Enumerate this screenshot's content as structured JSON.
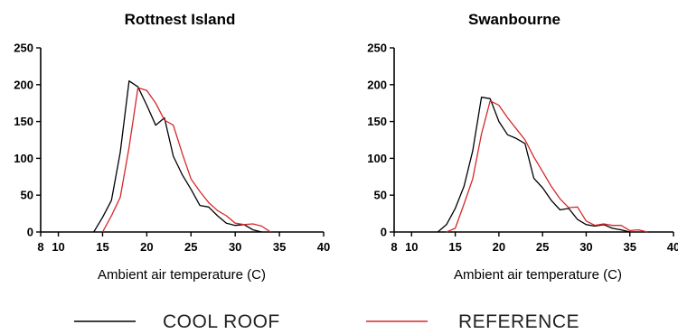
{
  "chart_data": [
    {
      "type": "line",
      "title": "Rottnest Island",
      "xlabel": "Ambient air temperature (C)",
      "ylabel": "",
      "xlim": [
        8,
        40
      ],
      "ylim": [
        0,
        250
      ],
      "xticks": [
        8,
        10,
        15,
        20,
        25,
        30,
        35,
        40
      ],
      "yticks": [
        0,
        50,
        100,
        150,
        200,
        250
      ],
      "grid": false,
      "series": [
        {
          "name": "COOL ROOF",
          "color": "#000000",
          "x": [
            14,
            15,
            16,
            17,
            18,
            19,
            20,
            21,
            22,
            23,
            24,
            25,
            26,
            27,
            28,
            29,
            30,
            31,
            32,
            33
          ],
          "y": [
            0,
            20,
            43,
            108,
            205,
            197,
            172,
            145,
            155,
            103,
            78,
            58,
            36,
            34,
            22,
            12,
            9,
            10,
            3,
            0
          ]
        },
        {
          "name": "REFERENCE",
          "color": "#d62728",
          "x": [
            15,
            16,
            17,
            18,
            19,
            20,
            21,
            22,
            23,
            24,
            25,
            26,
            27,
            28,
            29,
            30,
            31,
            32,
            33,
            34
          ],
          "y": [
            0,
            22,
            47,
            115,
            196,
            192,
            175,
            152,
            145,
            107,
            72,
            55,
            40,
            29,
            22,
            12,
            10,
            11,
            8,
            0
          ]
        }
      ]
    },
    {
      "type": "line",
      "title": "Swanbourne",
      "xlabel": "Ambient air temperature (C)",
      "ylabel": "",
      "xlim": [
        8,
        40
      ],
      "ylim": [
        0,
        250
      ],
      "xticks": [
        8,
        10,
        15,
        20,
        25,
        30,
        35,
        40
      ],
      "yticks": [
        0,
        50,
        100,
        150,
        200,
        250
      ],
      "grid": false,
      "series": [
        {
          "name": "COOL ROOF",
          "color": "#000000",
          "x": [
            13,
            14,
            15,
            16,
            17,
            18,
            19,
            20,
            21,
            22,
            23,
            24,
            25,
            26,
            27,
            28,
            29,
            30,
            31,
            32,
            33,
            34,
            35
          ],
          "y": [
            0,
            10,
            32,
            62,
            110,
            183,
            181,
            150,
            132,
            127,
            120,
            73,
            60,
            43,
            30,
            32,
            17,
            10,
            8,
            10,
            5,
            3,
            0
          ]
        },
        {
          "name": "REFERENCE",
          "color": "#d62728",
          "x": [
            14,
            15,
            16,
            17,
            18,
            19,
            20,
            21,
            22,
            23,
            24,
            25,
            26,
            27,
            28,
            29,
            30,
            31,
            32,
            33,
            34,
            35,
            36,
            37
          ],
          "y": [
            0,
            5,
            38,
            72,
            133,
            178,
            172,
            155,
            140,
            125,
            102,
            82,
            62,
            45,
            33,
            34,
            15,
            9,
            11,
            9,
            9,
            2,
            3,
            0
          ]
        }
      ]
    }
  ],
  "legend": {
    "items": [
      {
        "label": "COOL ROOF",
        "color": "#000000"
      },
      {
        "label": "REFERENCE",
        "color": "#d62728"
      }
    ]
  }
}
